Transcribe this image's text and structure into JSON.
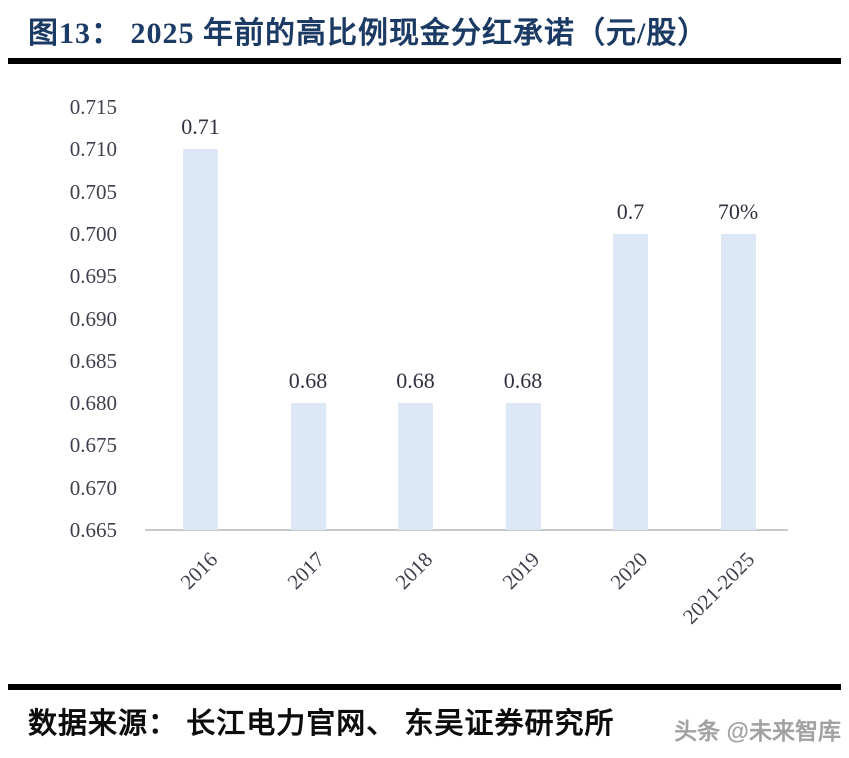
{
  "title": "图13：  2025 年前的高比例现金分红承诺（元/股）",
  "chart_data": {
    "type": "bar",
    "title": "图13：  2025 年前的高比例现金分红承诺（元/股）",
    "categories": [
      "2016",
      "2017",
      "2018",
      "2019",
      "2020",
      "2021-2025"
    ],
    "values": [
      0.71,
      0.68,
      0.68,
      0.68,
      0.7,
      0.7
    ],
    "data_labels": [
      "0.71",
      "0.68",
      "0.68",
      "0.68",
      "0.7",
      "70%"
    ],
    "xlabel": "",
    "ylabel": "",
    "ylim": [
      0.665,
      0.715
    ],
    "ytick_step": 0.005,
    "yticks": [
      "0.715",
      "0.710",
      "0.705",
      "0.700",
      "0.695",
      "0.690",
      "0.685",
      "0.680",
      "0.675",
      "0.670",
      "0.665"
    ],
    "grid": false,
    "legend_position": "none",
    "bar_color": "#dce8f6",
    "axis_line_color": "#c9c9c9",
    "tick_label_color": "#3e3f4e",
    "data_label_color": "#303140",
    "title_color": "#1b3a64"
  },
  "footer": {
    "source": "数据来源：  长江电力官网、  东吴证券研究所",
    "watermark": "头条 @未来智库"
  }
}
